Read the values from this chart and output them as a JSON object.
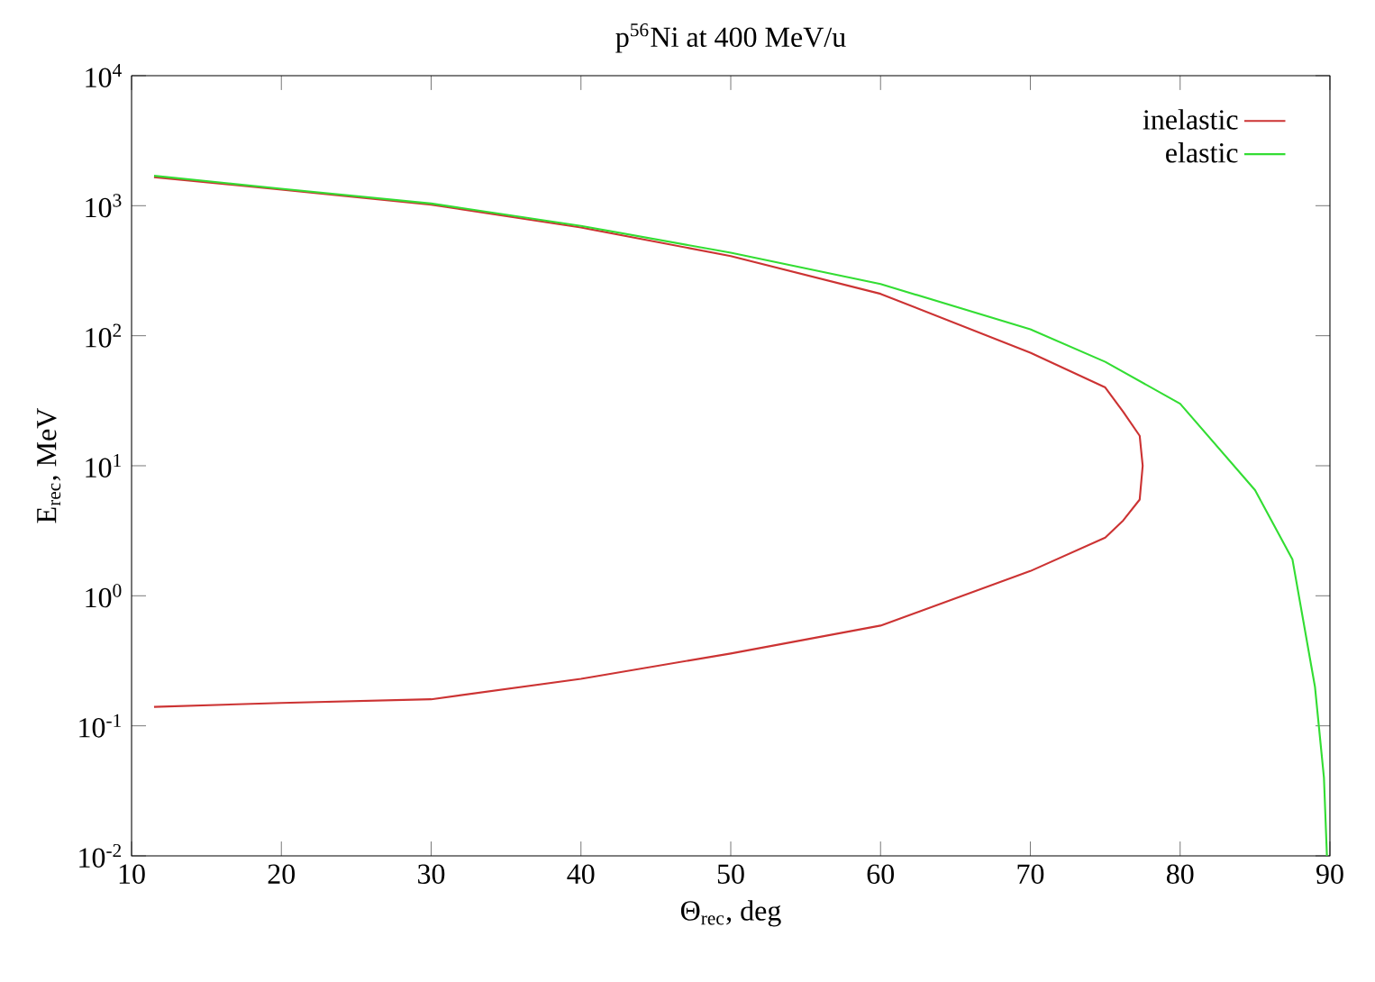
{
  "chart_data": {
    "type": "line",
    "title": "p$^{56}$Ni at 400 MeV/u",
    "xlabel": "Θ$_{rec}$, deg",
    "ylabel": "E$_{rec}$, MeV",
    "log": "y",
    "legend": "top right",
    "line_style": "solid",
    "grid": false,
    "xlim": [
      10,
      90
    ],
    "xticks": [
      10,
      20,
      30,
      40,
      50,
      60,
      70,
      80,
      90
    ],
    "ylim": [
      0.01,
      10000
    ],
    "yticks": [
      {
        "value": 0.01,
        "label": "10$^{-2}$"
      },
      {
        "value": 0.1,
        "label": "10$^{-1}$"
      },
      {
        "value": 1,
        "label": "10$^{0}$"
      },
      {
        "value": 10,
        "label": "10$^{1}$"
      },
      {
        "value": 100,
        "label": "10$^{2}$"
      },
      {
        "value": 1000,
        "label": "10$^{3}$"
      },
      {
        "value": 10000,
        "label": "10$^{4}$"
      }
    ],
    "series": [
      {
        "name": "inelastic",
        "color": "#cc3333",
        "x": [
          11.5,
          20,
          30,
          40,
          50,
          60,
          70,
          75,
          76.2,
          77.3,
          77.5,
          77.3,
          76.2,
          75,
          70,
          60,
          50,
          40,
          30,
          20,
          11.5
        ],
        "values": [
          1660,
          1330,
          1020,
          680,
          410,
          210,
          74,
          40,
          26,
          17,
          10,
          5.5,
          3.8,
          2.8,
          1.55,
          0.59,
          0.36,
          0.23,
          0.16,
          0.15,
          0.14
        ]
      },
      {
        "name": "elastic",
        "color": "#33dd33",
        "x": [
          11.5,
          20,
          30,
          40,
          50,
          60,
          70,
          75,
          80,
          85,
          87.5,
          89,
          89.6,
          89.8
        ],
        "values": [
          1700,
          1350,
          1040,
          700,
          435,
          250,
          112,
          63,
          30,
          6.5,
          1.9,
          0.2,
          0.04,
          0.01
        ]
      }
    ]
  }
}
